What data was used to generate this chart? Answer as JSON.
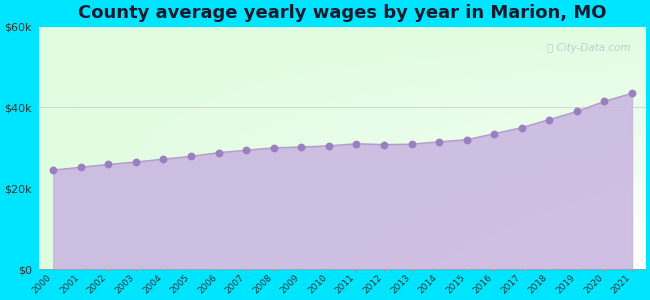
{
  "title": "County average yearly wages by year in Marion, MO",
  "years": [
    2000,
    2001,
    2002,
    2003,
    2004,
    2005,
    2006,
    2007,
    2008,
    2009,
    2010,
    2011,
    2012,
    2013,
    2014,
    2015,
    2016,
    2017,
    2018,
    2019,
    2020,
    2021
  ],
  "values": [
    24500,
    25200,
    25900,
    26500,
    27200,
    27900,
    28800,
    29400,
    30000,
    30200,
    30500,
    31000,
    30800,
    30900,
    31500,
    32000,
    33500,
    35000,
    37000,
    39000,
    41500,
    43500
  ],
  "ylim": [
    0,
    60000
  ],
  "yticks": [
    0,
    20000,
    40000,
    60000
  ],
  "ytick_labels": [
    "$0",
    "$20k",
    "$40k",
    "$60k"
  ],
  "line_color": "#b39dca",
  "fill_color": "#c8b4e0",
  "fill_alpha": 0.85,
  "marker_color": "#9b7fc0",
  "marker_size": 4,
  "bg_outer": "#00e5ff",
  "grid_color": "#cccccc",
  "title_fontsize": 13,
  "watermark": "City-Data.com",
  "watermark_icon": "ⓘ"
}
